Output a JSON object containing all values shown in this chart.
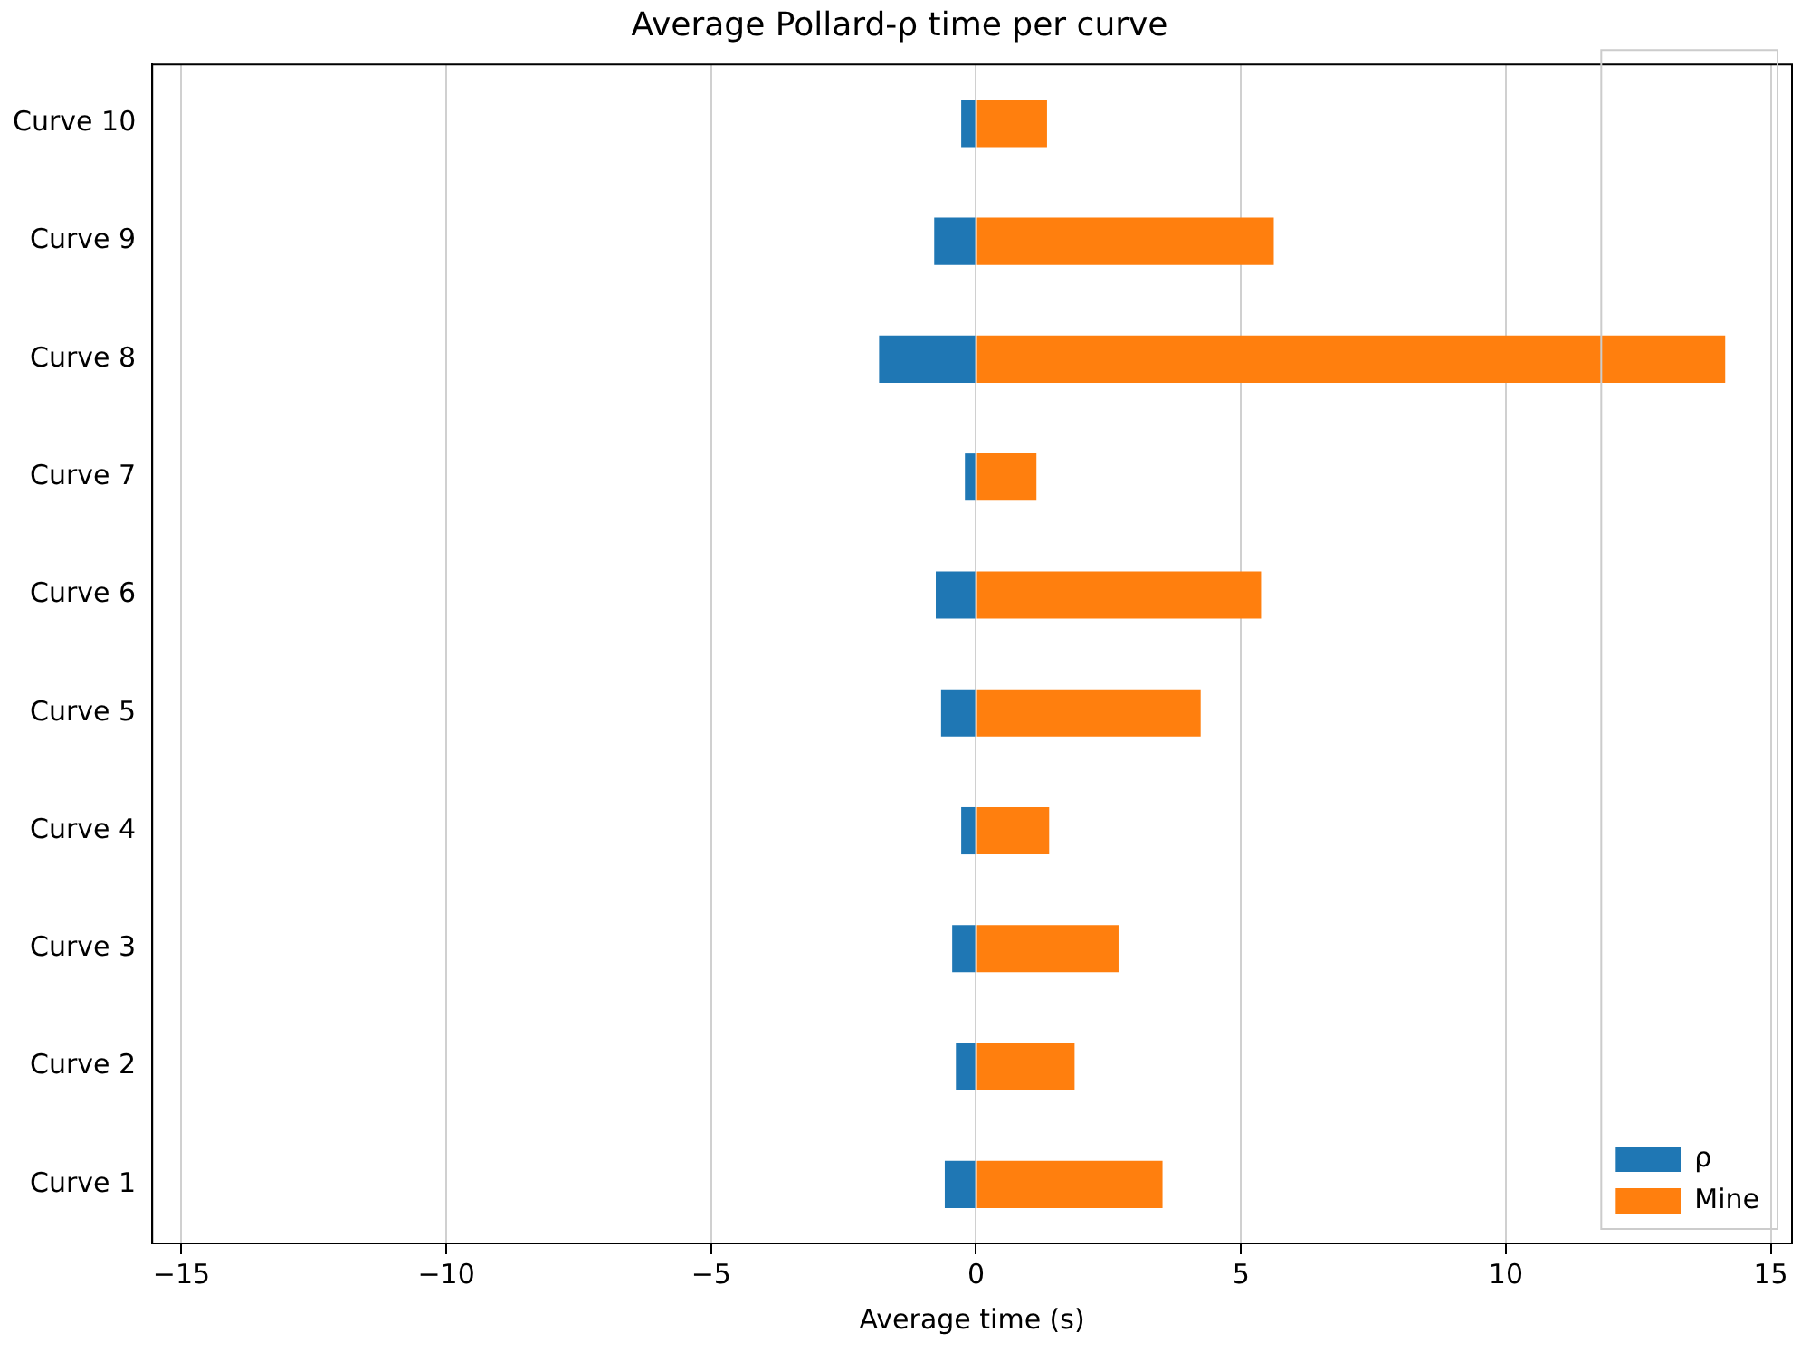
{
  "chart_data": {
    "type": "bar",
    "orientation": "horizontal",
    "stacked": true,
    "title": "Average Pollard-ρ time per curve",
    "xlabel": "Average time (s)",
    "categories": [
      "Curve 10",
      "Curve 9",
      "Curve 8",
      "Curve 7",
      "Curve 6",
      "Curve 5",
      "Curve 4",
      "Curve 3",
      "Curve 2",
      "Curve 1"
    ],
    "series": [
      {
        "name": "ρ",
        "color": "#1f77b4",
        "values": [
          -0.28,
          -0.79,
          -1.83,
          -0.21,
          -0.76,
          -0.66,
          -0.28,
          -0.45,
          -0.38,
          -0.59
        ]
      },
      {
        "name": "Mine",
        "color": "#ff7f0e",
        "values": [
          1.34,
          5.62,
          14.14,
          1.14,
          5.38,
          4.24,
          1.38,
          2.69,
          1.86,
          3.52
        ]
      }
    ],
    "xlim": [
      -15.55,
      15.4
    ],
    "xticks": [
      {
        "value": -15,
        "label": "−15"
      },
      {
        "value": -10,
        "label": "−10"
      },
      {
        "value": -5,
        "label": "−5"
      },
      0,
      5,
      10,
      15
    ],
    "grid": "x",
    "legend": "bottom right"
  }
}
